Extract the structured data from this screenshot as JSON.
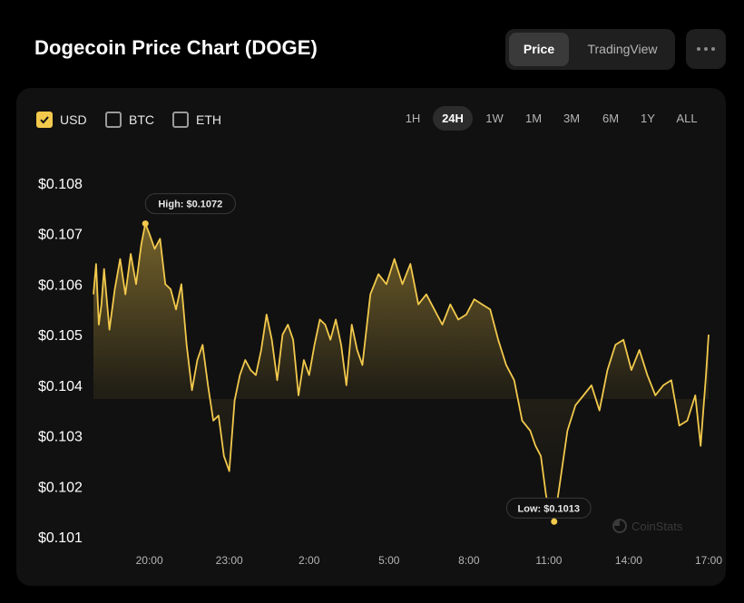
{
  "header": {
    "title": "Dogecoin Price Chart (DOGE)",
    "view_toggle": [
      "Price",
      "TradingView"
    ],
    "active_view": "Price",
    "more_icon": "more-horizontal-icon"
  },
  "currencies": [
    {
      "label": "USD",
      "checked": true
    },
    {
      "label": "BTC",
      "checked": false
    },
    {
      "label": "ETH",
      "checked": false
    }
  ],
  "ranges": [
    "1H",
    "24H",
    "1W",
    "1M",
    "3M",
    "6M",
    "1Y",
    "ALL"
  ],
  "active_range": "24H",
  "watermark": "CoinStats",
  "colors": {
    "line": "#f2c94c",
    "background": "#111111",
    "accent": "#f2c94c"
  },
  "chart_data": {
    "type": "area",
    "title": "",
    "xlabel": "",
    "ylabel": "",
    "x_ticks": [
      "20:00",
      "23:00",
      "2:00",
      "5:00",
      "8:00",
      "11:00",
      "14:00",
      "17:00"
    ],
    "y_ticks": [
      "$0.108",
      "$0.107",
      "$0.106",
      "$0.105",
      "$0.104",
      "$0.103",
      "$0.102",
      "$0.101"
    ],
    "ylim": [
      0.101,
      0.108
    ],
    "x_range_hours": [
      17.9,
      41.0
    ],
    "grid": false,
    "legend": "none",
    "annotations": [
      {
        "label": "High: $0.1072",
        "x_hour": 19.85,
        "value": 0.1072
      },
      {
        "label": "Low: $0.1013",
        "x_hour": 35.2,
        "value": 0.1013
      }
    ],
    "series": [
      {
        "x_hours": [
          17.9,
          18.0,
          18.1,
          18.2,
          18.3,
          18.5,
          18.7,
          18.9,
          19.1,
          19.3,
          19.5,
          19.7,
          19.85,
          20.0,
          20.2,
          20.4,
          20.6,
          20.8,
          21.0,
          21.2,
          21.4,
          21.6,
          21.8,
          22.0,
          22.2,
          22.4,
          22.6,
          22.8,
          23.0,
          23.2,
          23.4,
          23.6,
          23.8,
          24.0,
          24.2,
          24.4,
          24.6,
          24.8,
          25.0,
          25.2,
          25.4,
          25.6,
          25.8,
          26.0,
          26.2,
          26.4,
          26.6,
          26.8,
          27.0,
          27.2,
          27.4,
          27.6,
          27.8,
          28.0,
          28.3,
          28.6,
          28.9,
          29.2,
          29.5,
          29.8,
          30.1,
          30.4,
          30.7,
          31.0,
          31.3,
          31.6,
          31.9,
          32.2,
          32.5,
          32.8,
          33.1,
          33.4,
          33.7,
          34.0,
          34.3,
          34.5,
          34.7,
          34.9,
          35.1,
          35.2,
          35.4,
          35.7,
          36.0,
          36.3,
          36.6,
          36.9,
          37.2,
          37.5,
          37.8,
          38.1,
          38.4,
          38.7,
          39.0,
          39.3,
          39.6,
          39.9,
          40.2,
          40.5,
          40.7,
          40.9,
          41.0
        ],
        "values": [
          0.1058,
          0.1064,
          0.1052,
          0.1056,
          0.1063,
          0.1051,
          0.1059,
          0.1065,
          0.1058,
          0.1066,
          0.106,
          0.1068,
          0.1072,
          0.107,
          0.1067,
          0.1069,
          0.106,
          0.1059,
          0.1055,
          0.106,
          0.1048,
          0.1039,
          0.1045,
          0.1048,
          0.104,
          0.1033,
          0.1034,
          0.1026,
          0.1023,
          0.1037,
          0.1042,
          0.1045,
          0.1043,
          0.1042,
          0.1047,
          0.1054,
          0.1049,
          0.1041,
          0.105,
          0.1052,
          0.1049,
          0.1038,
          0.1045,
          0.1042,
          0.1048,
          0.1053,
          0.1052,
          0.1049,
          0.1053,
          0.1048,
          0.104,
          0.1052,
          0.1047,
          0.1044,
          0.1058,
          0.1062,
          0.106,
          0.1065,
          0.106,
          0.1064,
          0.1056,
          0.1058,
          0.1055,
          0.1052,
          0.1056,
          0.1053,
          0.1054,
          0.1057,
          0.1056,
          0.1055,
          0.1049,
          0.1044,
          0.1041,
          0.1033,
          0.1031,
          0.1028,
          0.1026,
          0.1018,
          0.1015,
          0.1013,
          0.102,
          0.1031,
          0.1036,
          0.1038,
          0.104,
          0.1035,
          0.1043,
          0.1048,
          0.1049,
          0.1043,
          0.1047,
          0.1042,
          0.1038,
          0.104,
          0.1041,
          0.1032,
          0.1033,
          0.1038,
          0.1028,
          0.1042,
          0.105
        ]
      }
    ]
  }
}
